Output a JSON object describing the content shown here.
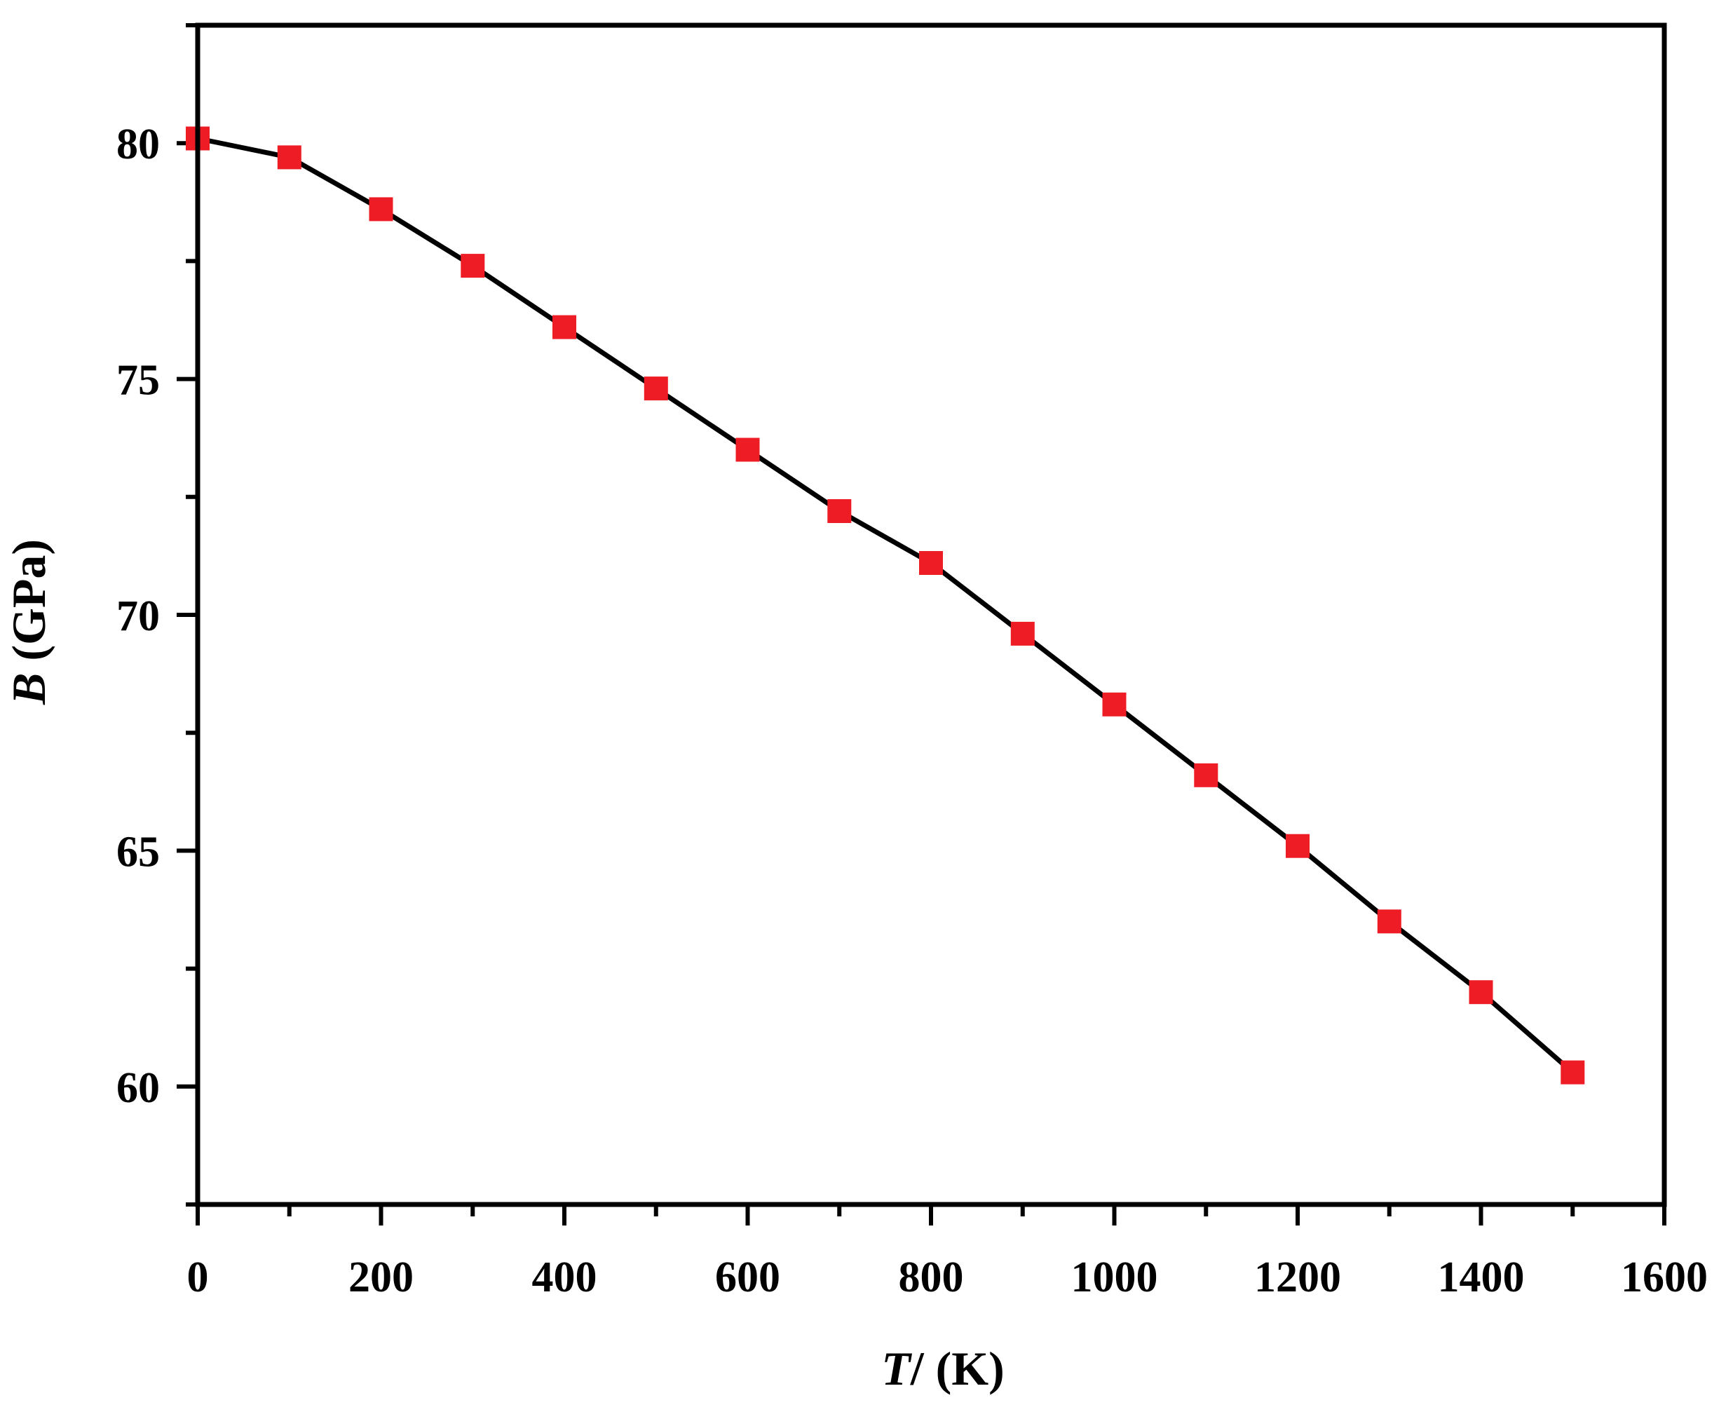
{
  "chart_data": {
    "type": "line",
    "title": "",
    "xlabel": {
      "symbol": "T",
      "rest": "/ (K)"
    },
    "ylabel": {
      "symbol": "B",
      "rest": " (GPa)"
    },
    "xlim": [
      0,
      1600
    ],
    "ylim": [
      57.5,
      82.5
    ],
    "xticks": [
      0,
      200,
      400,
      600,
      800,
      1000,
      1200,
      1400,
      1600
    ],
    "yticks": [
      60,
      65,
      70,
      75,
      80
    ],
    "x_minor_step": 100,
    "y_minor_step": 2.5,
    "grid": false,
    "legend": "none",
    "series": [
      {
        "line_color": "#000000",
        "marker": "square",
        "marker_color": "#ee1c24",
        "x": [
          0,
          100,
          200,
          300,
          400,
          500,
          600,
          700,
          800,
          900,
          1000,
          1100,
          1200,
          1300,
          1400,
          1500
        ],
        "y": [
          80.1,
          79.7,
          78.6,
          77.4,
          76.1,
          74.8,
          73.5,
          72.2,
          71.1,
          69.6,
          68.1,
          66.6,
          65.1,
          63.5,
          62.0,
          60.3
        ]
      }
    ]
  }
}
